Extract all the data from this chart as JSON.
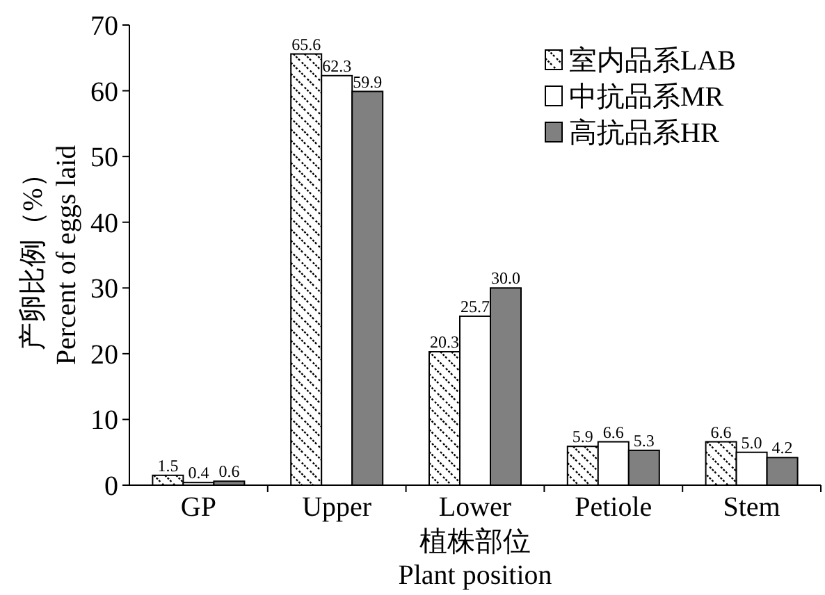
{
  "chart_data": {
    "type": "bar",
    "xlabel": "植株部位\nPlant position",
    "ylabel": "产卵比例（%）\nPercent of eggs laid",
    "categories": [
      "GP",
      "Upper",
      "Lower",
      "Petiole",
      "Stem"
    ],
    "series": [
      {
        "name": "室内品系LAB",
        "color": "#ffffff",
        "values": [
          1.5,
          65.6,
          20.3,
          5.9,
          6.6
        ],
        "value_labels": [
          "1.5",
          "65.6",
          "20.3",
          "5.9",
          "6.6"
        ]
      },
      {
        "name": "中抗品系MR",
        "color": "#ffffff",
        "values": [
          0.4,
          62.3,
          25.7,
          6.6,
          5.0
        ],
        "value_labels": [
          "0.4",
          "62.3",
          "25.7",
          "6.6",
          "5.0"
        ]
      },
      {
        "name": "高抗品系HR",
        "color": "#808080",
        "values": [
          0.6,
          59.9,
          30.0,
          5.3,
          4.2
        ],
        "value_labels": [
          "0.6",
          "59.9",
          "30.0",
          "5.3",
          "4.2"
        ]
      }
    ],
    "ylim": [
      0,
      70
    ],
    "yticks": [
      0,
      10,
      20,
      30,
      40,
      50,
      60,
      70
    ],
    "legend": "top right",
    "grid": false
  }
}
